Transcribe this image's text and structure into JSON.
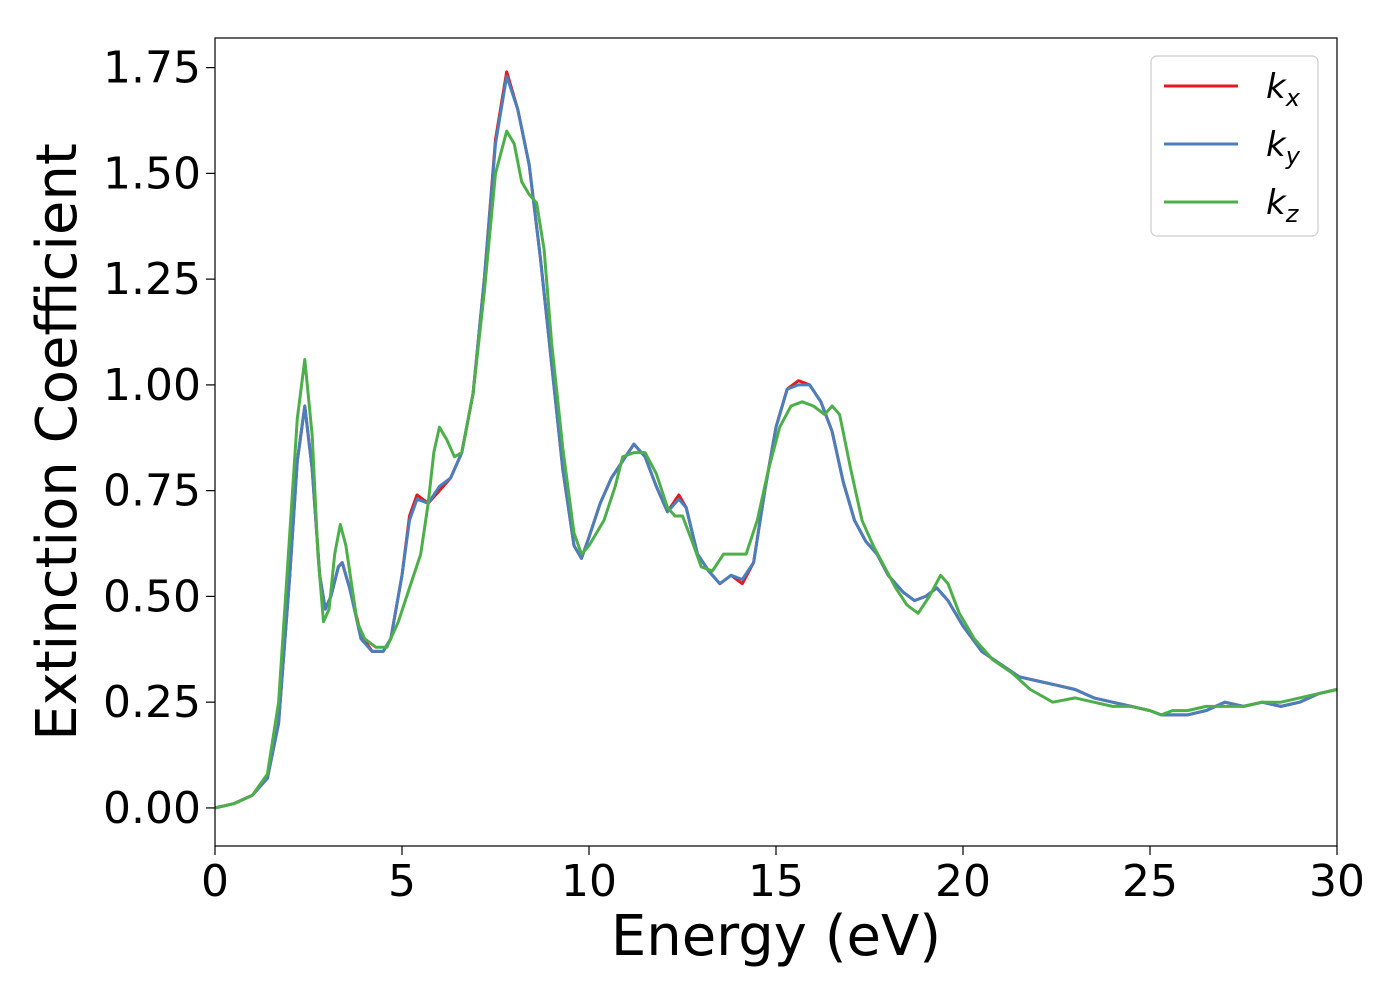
{
  "chart_data": {
    "type": "line",
    "title": "",
    "xlabel": "Energy (eV)",
    "ylabel": "Extinction Coefficient",
    "xlim": [
      0,
      30
    ],
    "ylim": [
      -0.09,
      1.82
    ],
    "xticks": [
      0,
      5,
      10,
      15,
      20,
      25,
      30
    ],
    "xtick_labels": [
      "0",
      "5",
      "10",
      "15",
      "20",
      "25",
      "30"
    ],
    "yticks": [
      0.0,
      0.25,
      0.5,
      0.75,
      1.0,
      1.25,
      1.5,
      1.75
    ],
    "ytick_labels": [
      "0.00",
      "0.25",
      "0.50",
      "0.75",
      "1.00",
      "1.25",
      "1.50",
      "1.75"
    ],
    "grid": false,
    "legend_position": "top-right",
    "series": [
      {
        "name": "k_x",
        "base": "k",
        "sub": "x",
        "color": "#e41a1c",
        "points": [
          [
            0,
            0.0
          ],
          [
            0.5,
            0.01
          ],
          [
            1.0,
            0.03
          ],
          [
            1.4,
            0.07
          ],
          [
            1.7,
            0.2
          ],
          [
            2.0,
            0.55
          ],
          [
            2.2,
            0.82
          ],
          [
            2.4,
            0.95
          ],
          [
            2.6,
            0.8
          ],
          [
            2.8,
            0.55
          ],
          [
            2.95,
            0.47
          ],
          [
            3.1,
            0.5
          ],
          [
            3.3,
            0.57
          ],
          [
            3.4,
            0.58
          ],
          [
            3.6,
            0.52
          ],
          [
            3.9,
            0.41
          ],
          [
            4.2,
            0.37
          ],
          [
            4.5,
            0.37
          ],
          [
            4.7,
            0.4
          ],
          [
            5.0,
            0.55
          ],
          [
            5.2,
            0.69
          ],
          [
            5.4,
            0.74
          ],
          [
            5.7,
            0.72
          ],
          [
            6.0,
            0.75
          ],
          [
            6.3,
            0.78
          ],
          [
            6.6,
            0.84
          ],
          [
            6.9,
            0.98
          ],
          [
            7.2,
            1.25
          ],
          [
            7.5,
            1.58
          ],
          [
            7.8,
            1.74
          ],
          [
            8.1,
            1.65
          ],
          [
            8.4,
            1.52
          ],
          [
            8.7,
            1.3
          ],
          [
            9.0,
            1.05
          ],
          [
            9.3,
            0.8
          ],
          [
            9.6,
            0.62
          ],
          [
            9.8,
            0.59
          ],
          [
            10.0,
            0.64
          ],
          [
            10.3,
            0.72
          ],
          [
            10.6,
            0.78
          ],
          [
            10.9,
            0.82
          ],
          [
            11.2,
            0.86
          ],
          [
            11.5,
            0.83
          ],
          [
            11.8,
            0.76
          ],
          [
            12.1,
            0.7
          ],
          [
            12.4,
            0.74
          ],
          [
            12.6,
            0.71
          ],
          [
            12.9,
            0.6
          ],
          [
            13.2,
            0.56
          ],
          [
            13.5,
            0.53
          ],
          [
            13.8,
            0.55
          ],
          [
            14.1,
            0.53
          ],
          [
            14.4,
            0.58
          ],
          [
            14.7,
            0.75
          ],
          [
            15.0,
            0.9
          ],
          [
            15.3,
            0.99
          ],
          [
            15.6,
            1.01
          ],
          [
            15.9,
            1.0
          ],
          [
            16.2,
            0.96
          ],
          [
            16.5,
            0.89
          ],
          [
            16.8,
            0.77
          ],
          [
            17.1,
            0.68
          ],
          [
            17.4,
            0.63
          ],
          [
            17.7,
            0.6
          ],
          [
            18.0,
            0.55
          ],
          [
            18.4,
            0.51
          ],
          [
            18.7,
            0.49
          ],
          [
            19.0,
            0.5
          ],
          [
            19.3,
            0.52
          ],
          [
            19.6,
            0.49
          ],
          [
            20.0,
            0.43
          ],
          [
            20.5,
            0.37
          ],
          [
            21.0,
            0.34
          ],
          [
            21.5,
            0.31
          ],
          [
            22.0,
            0.3
          ],
          [
            22.5,
            0.29
          ],
          [
            23.0,
            0.28
          ],
          [
            23.5,
            0.26
          ],
          [
            24.0,
            0.25
          ],
          [
            24.5,
            0.24
          ],
          [
            25.0,
            0.23
          ],
          [
            25.3,
            0.22
          ],
          [
            25.6,
            0.22
          ],
          [
            26.0,
            0.22
          ],
          [
            26.5,
            0.23
          ],
          [
            27.0,
            0.25
          ],
          [
            27.5,
            0.24
          ],
          [
            28.0,
            0.25
          ],
          [
            28.5,
            0.24
          ],
          [
            29.0,
            0.25
          ],
          [
            29.5,
            0.27
          ],
          [
            30.0,
            0.28
          ]
        ]
      },
      {
        "name": "k_y",
        "base": "k",
        "sub": "y",
        "color": "#4a7fbd",
        "points": [
          [
            0,
            0.0
          ],
          [
            0.5,
            0.01
          ],
          [
            1.0,
            0.03
          ],
          [
            1.4,
            0.07
          ],
          [
            1.7,
            0.2
          ],
          [
            2.0,
            0.55
          ],
          [
            2.2,
            0.82
          ],
          [
            2.4,
            0.95
          ],
          [
            2.6,
            0.8
          ],
          [
            2.8,
            0.55
          ],
          [
            2.95,
            0.47
          ],
          [
            3.1,
            0.5
          ],
          [
            3.3,
            0.57
          ],
          [
            3.4,
            0.58
          ],
          [
            3.6,
            0.52
          ],
          [
            3.9,
            0.4
          ],
          [
            4.2,
            0.37
          ],
          [
            4.5,
            0.37
          ],
          [
            4.7,
            0.4
          ],
          [
            5.0,
            0.55
          ],
          [
            5.2,
            0.68
          ],
          [
            5.4,
            0.73
          ],
          [
            5.7,
            0.72
          ],
          [
            6.0,
            0.76
          ],
          [
            6.3,
            0.78
          ],
          [
            6.6,
            0.84
          ],
          [
            6.9,
            0.98
          ],
          [
            7.2,
            1.25
          ],
          [
            7.5,
            1.57
          ],
          [
            7.8,
            1.73
          ],
          [
            8.1,
            1.65
          ],
          [
            8.4,
            1.52
          ],
          [
            8.7,
            1.3
          ],
          [
            9.0,
            1.05
          ],
          [
            9.3,
            0.8
          ],
          [
            9.6,
            0.62
          ],
          [
            9.8,
            0.59
          ],
          [
            10.0,
            0.64
          ],
          [
            10.3,
            0.72
          ],
          [
            10.6,
            0.78
          ],
          [
            10.9,
            0.82
          ],
          [
            11.2,
            0.86
          ],
          [
            11.5,
            0.83
          ],
          [
            11.8,
            0.76
          ],
          [
            12.1,
            0.7
          ],
          [
            12.4,
            0.73
          ],
          [
            12.6,
            0.71
          ],
          [
            12.9,
            0.6
          ],
          [
            13.2,
            0.56
          ],
          [
            13.5,
            0.53
          ],
          [
            13.8,
            0.55
          ],
          [
            14.1,
            0.54
          ],
          [
            14.4,
            0.58
          ],
          [
            14.7,
            0.75
          ],
          [
            15.0,
            0.9
          ],
          [
            15.3,
            0.99
          ],
          [
            15.6,
            1.0
          ],
          [
            15.9,
            1.0
          ],
          [
            16.2,
            0.96
          ],
          [
            16.5,
            0.89
          ],
          [
            16.8,
            0.77
          ],
          [
            17.1,
            0.68
          ],
          [
            17.4,
            0.63
          ],
          [
            17.7,
            0.6
          ],
          [
            18.0,
            0.55
          ],
          [
            18.4,
            0.51
          ],
          [
            18.7,
            0.49
          ],
          [
            19.0,
            0.5
          ],
          [
            19.3,
            0.52
          ],
          [
            19.6,
            0.49
          ],
          [
            20.0,
            0.43
          ],
          [
            20.5,
            0.37
          ],
          [
            21.0,
            0.34
          ],
          [
            21.5,
            0.31
          ],
          [
            22.0,
            0.3
          ],
          [
            22.5,
            0.29
          ],
          [
            23.0,
            0.28
          ],
          [
            23.5,
            0.26
          ],
          [
            24.0,
            0.25
          ],
          [
            24.5,
            0.24
          ],
          [
            25.0,
            0.23
          ],
          [
            25.3,
            0.22
          ],
          [
            25.6,
            0.22
          ],
          [
            26.0,
            0.22
          ],
          [
            26.5,
            0.23
          ],
          [
            27.0,
            0.25
          ],
          [
            27.5,
            0.24
          ],
          [
            28.0,
            0.25
          ],
          [
            28.5,
            0.24
          ],
          [
            29.0,
            0.25
          ],
          [
            29.5,
            0.27
          ],
          [
            30.0,
            0.28
          ]
        ]
      },
      {
        "name": "k_z",
        "base": "k",
        "sub": "z",
        "color": "#4daf4a",
        "points": [
          [
            0,
            0.0
          ],
          [
            0.5,
            0.01
          ],
          [
            1.0,
            0.03
          ],
          [
            1.4,
            0.08
          ],
          [
            1.7,
            0.25
          ],
          [
            2.0,
            0.65
          ],
          [
            2.2,
            0.92
          ],
          [
            2.4,
            1.06
          ],
          [
            2.6,
            0.88
          ],
          [
            2.75,
            0.6
          ],
          [
            2.9,
            0.44
          ],
          [
            3.05,
            0.47
          ],
          [
            3.2,
            0.6
          ],
          [
            3.35,
            0.67
          ],
          [
            3.5,
            0.62
          ],
          [
            3.8,
            0.44
          ],
          [
            4.0,
            0.4
          ],
          [
            4.3,
            0.38
          ],
          [
            4.6,
            0.38
          ],
          [
            4.9,
            0.44
          ],
          [
            5.2,
            0.52
          ],
          [
            5.5,
            0.6
          ],
          [
            5.7,
            0.72
          ],
          [
            5.85,
            0.84
          ],
          [
            6.0,
            0.9
          ],
          [
            6.2,
            0.87
          ],
          [
            6.4,
            0.83
          ],
          [
            6.6,
            0.84
          ],
          [
            6.9,
            0.98
          ],
          [
            7.2,
            1.22
          ],
          [
            7.5,
            1.5
          ],
          [
            7.8,
            1.6
          ],
          [
            8.0,
            1.57
          ],
          [
            8.2,
            1.48
          ],
          [
            8.4,
            1.45
          ],
          [
            8.6,
            1.43
          ],
          [
            8.8,
            1.32
          ],
          [
            9.0,
            1.1
          ],
          [
            9.3,
            0.85
          ],
          [
            9.6,
            0.65
          ],
          [
            9.8,
            0.6
          ],
          [
            10.0,
            0.62
          ],
          [
            10.4,
            0.68
          ],
          [
            10.7,
            0.76
          ],
          [
            10.9,
            0.83
          ],
          [
            11.2,
            0.84
          ],
          [
            11.5,
            0.84
          ],
          [
            11.8,
            0.79
          ],
          [
            12.1,
            0.71
          ],
          [
            12.3,
            0.69
          ],
          [
            12.5,
            0.69
          ],
          [
            12.8,
            0.62
          ],
          [
            13.0,
            0.57
          ],
          [
            13.3,
            0.56
          ],
          [
            13.6,
            0.6
          ],
          [
            13.9,
            0.6
          ],
          [
            14.2,
            0.6
          ],
          [
            14.5,
            0.68
          ],
          [
            14.8,
            0.8
          ],
          [
            15.1,
            0.9
          ],
          [
            15.4,
            0.95
          ],
          [
            15.7,
            0.96
          ],
          [
            16.0,
            0.95
          ],
          [
            16.3,
            0.93
          ],
          [
            16.5,
            0.95
          ],
          [
            16.7,
            0.93
          ],
          [
            17.0,
            0.8
          ],
          [
            17.3,
            0.68
          ],
          [
            17.6,
            0.62
          ],
          [
            17.9,
            0.57
          ],
          [
            18.2,
            0.52
          ],
          [
            18.5,
            0.48
          ],
          [
            18.8,
            0.46
          ],
          [
            19.1,
            0.5
          ],
          [
            19.4,
            0.55
          ],
          [
            19.6,
            0.53
          ],
          [
            19.9,
            0.46
          ],
          [
            20.3,
            0.4
          ],
          [
            20.8,
            0.35
          ],
          [
            21.3,
            0.32
          ],
          [
            21.8,
            0.28
          ],
          [
            22.4,
            0.25
          ],
          [
            23.0,
            0.26
          ],
          [
            23.5,
            0.25
          ],
          [
            24.0,
            0.24
          ],
          [
            24.5,
            0.24
          ],
          [
            25.0,
            0.23
          ],
          [
            25.3,
            0.22
          ],
          [
            25.6,
            0.23
          ],
          [
            26.0,
            0.23
          ],
          [
            26.5,
            0.24
          ],
          [
            27.0,
            0.24
          ],
          [
            27.5,
            0.24
          ],
          [
            28.0,
            0.25
          ],
          [
            28.5,
            0.25
          ],
          [
            29.0,
            0.26
          ],
          [
            29.5,
            0.27
          ],
          [
            30.0,
            0.28
          ]
        ]
      }
    ]
  }
}
